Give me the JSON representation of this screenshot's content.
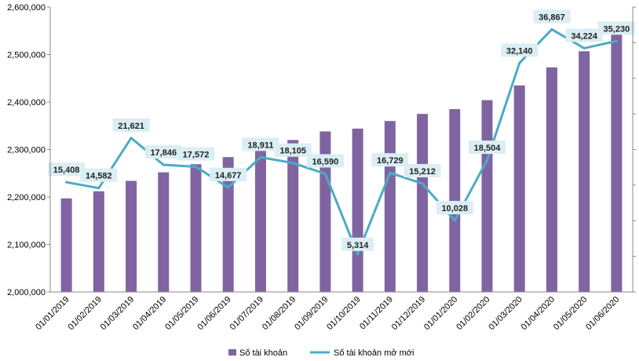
{
  "chart_data": {
    "type": "bar+line",
    "categories": [
      "01/01/2019",
      "01/02/2019",
      "01/03/2019",
      "01/04/2019",
      "01/05/2019",
      "01/06/2019",
      "01/07/2019",
      "01/08/2019",
      "01/09/2019",
      "01/10/2019",
      "01/11/2019",
      "01/12/2019",
      "01/01/2020",
      "01/02/2020",
      "01/03/2020",
      "01/04/2020",
      "01/05/2020",
      "01/06/2020"
    ],
    "series": [
      {
        "name": "Số tài khoản",
        "type": "bar",
        "axis": "left",
        "values": [
          2197000,
          2212000,
          2234000,
          2252000,
          2269000,
          2284000,
          2302000,
          2320000,
          2338000,
          2344000,
          2360000,
          2375000,
          2385000,
          2404000,
          2435000,
          2473000,
          2507000,
          2543000
        ]
      },
      {
        "name": "Số tài khoản mở mới",
        "type": "line",
        "axis": "right",
        "values": [
          15408,
          14582,
          21621,
          17846,
          17572,
          14677,
          18911,
          18105,
          16590,
          5314,
          16729,
          15212,
          10028,
          18504,
          32140,
          36867,
          34224,
          35230
        ],
        "labels": [
          "15,408",
          "14,582",
          "21,621",
          "17,846",
          "17,572",
          "14,677",
          "18,911",
          "18,105",
          "16,590",
          "5,314",
          "16,729",
          "15,212",
          "10,028",
          "18,504",
          "32,140",
          "36,867",
          "34,224",
          "35,230"
        ]
      }
    ],
    "y_left": {
      "ylim": [
        2000000,
        2600000
      ],
      "ticks": [
        "2,000,000",
        "2,100,000",
        "2,200,000",
        "2,300,000",
        "2,400,000",
        "2,500,000",
        "2,600,000"
      ]
    },
    "y_right": {
      "ylim": [
        0,
        40000
      ],
      "tick_labels_shown": false
    },
    "grid": false,
    "legend_position": "bottom",
    "colors": {
      "bar": "#8064A2",
      "line": "#4BACC6",
      "label_bg": "#DAEEF3"
    }
  }
}
